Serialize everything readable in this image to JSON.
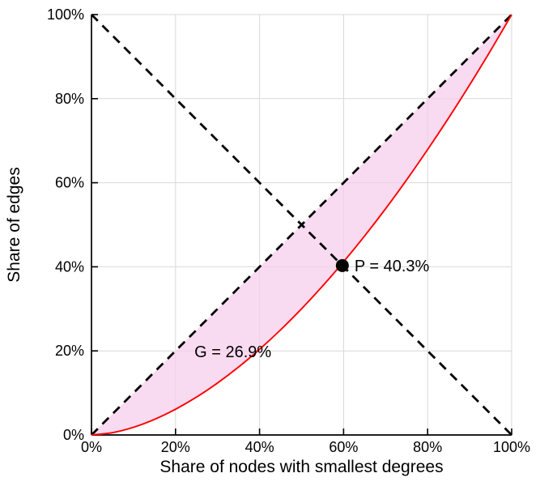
{
  "chart_data": {
    "type": "line",
    "title": "",
    "xlabel": "Share of nodes with smallest degrees",
    "ylabel": "Share of edges",
    "xlim": [
      0,
      100
    ],
    "ylim": [
      0,
      100
    ],
    "xticks": [
      0,
      20,
      40,
      60,
      80,
      100
    ],
    "yticks": [
      0,
      20,
      40,
      60,
      80,
      100
    ],
    "tick_suffix": "%",
    "grid": true,
    "grid_color": "#d9d9d9",
    "axis_color": "#000000",
    "series": [
      {
        "name": "lorenz-curve",
        "style": "solid",
        "color": "#ff0000",
        "points": [
          [
            0,
            0
          ],
          [
            5,
            0.55
          ],
          [
            10,
            1.83
          ],
          [
            15,
            3.71
          ],
          [
            20,
            6.12
          ],
          [
            25,
            9.01
          ],
          [
            30,
            12.37
          ],
          [
            35,
            16.16
          ],
          [
            40,
            20.38
          ],
          [
            45,
            25.0
          ],
          [
            50,
            30.02
          ],
          [
            55,
            35.42
          ],
          [
            60,
            41.2
          ],
          [
            65,
            47.34
          ],
          [
            70,
            53.83
          ],
          [
            75,
            60.69
          ],
          [
            80,
            67.89
          ],
          [
            85,
            75.42
          ],
          [
            90,
            83.28
          ],
          [
            95,
            91.48
          ],
          [
            100,
            100
          ]
        ]
      },
      {
        "name": "equality-diagonal",
        "style": "dashed",
        "color": "#000000",
        "points": [
          [
            0,
            0
          ],
          [
            100,
            100
          ]
        ]
      },
      {
        "name": "anti-diagonal",
        "style": "dashed",
        "color": "#000000",
        "points": [
          [
            0,
            100
          ],
          [
            100,
            0
          ]
        ]
      }
    ],
    "shaded_region": {
      "between": [
        "equality-diagonal",
        "lorenz-curve"
      ],
      "color": "#f6cdeb"
    },
    "marker_point": {
      "x": 59.7,
      "y": 40.3,
      "color": "#000000",
      "label": "P = 40.3%"
    },
    "annotations": [
      {
        "text": "G = 26.9%",
        "x": 24.5,
        "y": 18.5
      }
    ]
  }
}
